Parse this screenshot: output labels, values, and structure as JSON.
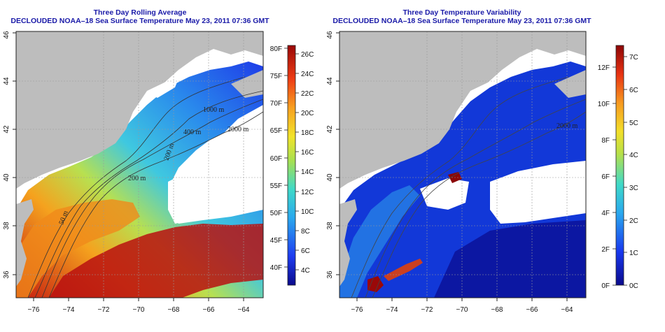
{
  "left_panel": {
    "title": "Three Day Rolling Average",
    "subtitle": "DECLOUDED NOAA–18 Sea Surface Temperature May 23, 2011 07:36 GMT",
    "x_ticks": [
      "−76",
      "−74",
      "−72",
      "−70",
      "−68",
      "−66",
      "−64"
    ],
    "y_ticks": [
      "36",
      "38",
      "40",
      "42",
      "44",
      "46"
    ],
    "contour_labels": [
      "2000 m",
      "1000 m",
      "400 m",
      "200 m",
      "50 m",
      "200 m"
    ],
    "colorbar": {
      "fahrenheit": [
        "80F",
        "75F",
        "70F",
        "65F",
        "60F",
        "55F",
        "50F",
        "45F",
        "40F"
      ],
      "celsius": [
        "26C",
        "24C",
        "22C",
        "20C",
        "18C",
        "16C",
        "14C",
        "12C",
        "10C",
        "8C",
        "6C",
        "4C"
      ]
    }
  },
  "right_panel": {
    "title": "Three Day Temperature Variability",
    "subtitle": "DECLOUDED NOAA–18 Sea Surface Temperature May 23, 2011 07:36 GMT",
    "x_ticks": [
      "−76",
      "−74",
      "−72",
      "−70",
      "−68",
      "−66",
      "−64"
    ],
    "y_ticks": [
      "36",
      "38",
      "40",
      "42",
      "44",
      "46"
    ],
    "contour_labels": [
      "2000 m"
    ],
    "colorbar": {
      "fahrenheit": [
        "12F",
        "10F",
        "8F",
        "6F",
        "4F",
        "2F",
        "0F"
      ],
      "celsius": [
        "7C",
        "6C",
        "5C",
        "4C",
        "3C",
        "2C",
        "1C",
        "0C"
      ]
    }
  },
  "colors": {
    "title": "#1a1aa8",
    "land": "#bdbdbd",
    "no_data": "#ffffff"
  }
}
